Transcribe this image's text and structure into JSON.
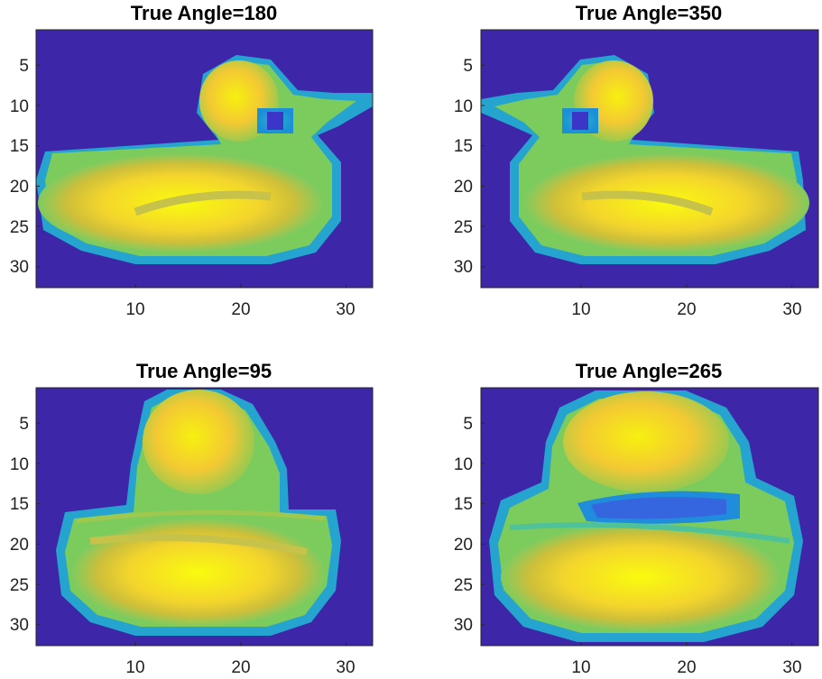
{
  "chart_data": [
    {
      "type": "heatmap",
      "title": "True Angle=180",
      "xlim": [
        0.5,
        32.5
      ],
      "ylim": [
        0.5,
        32.5
      ],
      "y_reversed": true,
      "xticks": [
        10,
        20,
        30
      ],
      "yticks": [
        5,
        10,
        15,
        20,
        25,
        30
      ],
      "xticklabels": [
        "10",
        "20",
        "30"
      ],
      "yticklabels": [
        "5",
        "10",
        "15",
        "20",
        "25",
        "30"
      ],
      "colormap": "parula",
      "background_color": "#3e26a8",
      "content": "rubber duck facing right"
    },
    {
      "type": "heatmap",
      "title": "True Angle=350",
      "xlim": [
        0.5,
        32.5
      ],
      "ylim": [
        0.5,
        32.5
      ],
      "y_reversed": true,
      "xticks": [
        10,
        20,
        30
      ],
      "yticks": [
        5,
        10,
        15,
        20,
        25,
        30
      ],
      "xticklabels": [
        "10",
        "20",
        "30"
      ],
      "yticklabels": [
        "5",
        "10",
        "15",
        "20",
        "25",
        "30"
      ],
      "colormap": "parula",
      "background_color": "#3e26a8",
      "content": "rubber duck facing left"
    },
    {
      "type": "heatmap",
      "title": "True Angle=95",
      "xlim": [
        0.5,
        32.5
      ],
      "ylim": [
        0.5,
        32.5
      ],
      "y_reversed": true,
      "xticks": [
        10,
        20,
        30
      ],
      "yticks": [
        5,
        10,
        15,
        20,
        25,
        30
      ],
      "xticklabels": [
        "10",
        "20",
        "30"
      ],
      "yticklabels": [
        "5",
        "10",
        "15",
        "20",
        "25",
        "30"
      ],
      "colormap": "parula",
      "background_color": "#3e26a8",
      "content": "rubber duck viewed from behind"
    },
    {
      "type": "heatmap",
      "title": "True Angle=265",
      "xlim": [
        0.5,
        32.5
      ],
      "ylim": [
        0.5,
        32.5
      ],
      "y_reversed": true,
      "xticks": [
        10,
        20,
        30
      ],
      "yticks": [
        5,
        10,
        15,
        20,
        25,
        30
      ],
      "xticklabels": [
        "10",
        "20",
        "30"
      ],
      "yticklabels": [
        "5",
        "10",
        "15",
        "20",
        "25",
        "30"
      ],
      "colormap": "parula",
      "background_color": "#3e26a8",
      "content": "rubber duck viewed from front"
    }
  ]
}
